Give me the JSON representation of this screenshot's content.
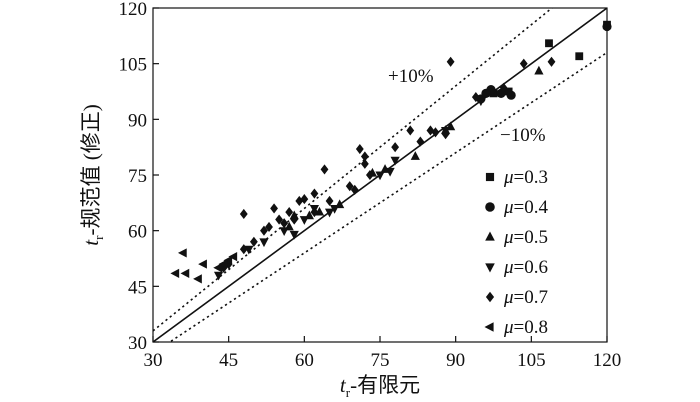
{
  "chart_data": {
    "type": "scatter",
    "xlabel": {
      "var": "t",
      "sub": "r",
      "text": "-有限元"
    },
    "ylabel": {
      "var": "t",
      "sub": "r",
      "text": "-规范值 (修正)"
    },
    "xlim": [
      30,
      120
    ],
    "ylim": [
      30,
      120
    ],
    "xticks": [
      "30",
      "45",
      "60",
      "75",
      "90",
      "105",
      "120"
    ],
    "yticks": [
      "30",
      "45",
      "60",
      "75",
      "90",
      "105",
      "120"
    ],
    "grid": false,
    "legend_position": "right",
    "annotations": {
      "plus": "+10%",
      "minus": "−10%"
    },
    "reference_lines": [
      {
        "style": "solid",
        "slope": 1.0
      },
      {
        "style": "dotted",
        "slope": 1.1
      },
      {
        "style": "dotted",
        "slope": 0.9
      }
    ],
    "series": [
      {
        "name": "μ=0.3",
        "mu_symbol": "μ",
        "mu_value": "=0.3",
        "marker": "square",
        "points": [
          [
            108.5,
            110.5
          ],
          [
            114.5,
            107
          ],
          [
            120,
            115.5
          ],
          [
            97.5,
            97
          ],
          [
            100.5,
            97.5
          ]
        ]
      },
      {
        "name": "μ=0.4",
        "mu_symbol": "μ",
        "mu_value": "=0.4",
        "marker": "circle",
        "points": [
          [
            120,
            115
          ],
          [
            97,
            98
          ],
          [
            99,
            97
          ],
          [
            101,
            96.5
          ],
          [
            95,
            95.5
          ],
          [
            96,
            97
          ]
        ]
      },
      {
        "name": "μ=0.5",
        "mu_symbol": "μ",
        "mu_value": "=0.5",
        "marker": "triangle-up",
        "points": [
          [
            106.5,
            103
          ],
          [
            82,
            80
          ],
          [
            88,
            87
          ],
          [
            73.5,
            75.5
          ],
          [
            76,
            76.5
          ],
          [
            61,
            64
          ],
          [
            63,
            65
          ],
          [
            57,
            61
          ],
          [
            58,
            64
          ],
          [
            89,
            88
          ],
          [
            67,
            67
          ]
        ]
      },
      {
        "name": "μ=0.6",
        "mu_symbol": "μ",
        "mu_value": "=0.6",
        "marker": "triangle-down",
        "points": [
          [
            95,
            95
          ],
          [
            75,
            75
          ],
          [
            77,
            76
          ],
          [
            88,
            87
          ],
          [
            65,
            65
          ],
          [
            58,
            59
          ],
          [
            60,
            63
          ],
          [
            43,
            48
          ],
          [
            52,
            57
          ],
          [
            62,
            66
          ],
          [
            66,
            66
          ],
          [
            49,
            55
          ],
          [
            56,
            60
          ],
          [
            78,
            79
          ]
        ]
      },
      {
        "name": "μ=0.7",
        "mu_symbol": "μ",
        "mu_value": "=0.7",
        "marker": "diamond",
        "points": [
          [
            109,
            105.5
          ],
          [
            89,
            105.5
          ],
          [
            103.5,
            105
          ],
          [
            99.5,
            98.5
          ],
          [
            94,
            96
          ],
          [
            86,
            86.5
          ],
          [
            88,
            86
          ],
          [
            81,
            87
          ],
          [
            78,
            82.5
          ],
          [
            71,
            82
          ],
          [
            64,
            76.5
          ],
          [
            72,
            80
          ],
          [
            72,
            78
          ],
          [
            69,
            72
          ],
          [
            73,
            75
          ],
          [
            54,
            66
          ],
          [
            57,
            65
          ],
          [
            59,
            68
          ],
          [
            60,
            68.5
          ],
          [
            62,
            65
          ],
          [
            52,
            60
          ],
          [
            55,
            63
          ],
          [
            45,
            51
          ],
          [
            48,
            55
          ],
          [
            50,
            57
          ],
          [
            48,
            64.5
          ],
          [
            53,
            61
          ],
          [
            58,
            63
          ],
          [
            62,
            70
          ],
          [
            65,
            68
          ],
          [
            70,
            71
          ],
          [
            83,
            84
          ],
          [
            85,
            87
          ],
          [
            56,
            62
          ],
          [
            44,
            50
          ]
        ]
      },
      {
        "name": "μ=0.8",
        "mu_symbol": "μ",
        "mu_value": "=0.8",
        "marker": "triangle-left",
        "points": [
          [
            36,
            54
          ],
          [
            34.5,
            48.5
          ],
          [
            36.5,
            48.5
          ],
          [
            39,
            47
          ],
          [
            43,
            50
          ],
          [
            45,
            52
          ],
          [
            46,
            53
          ],
          [
            40,
            51
          ],
          [
            44,
            51
          ]
        ]
      }
    ]
  }
}
